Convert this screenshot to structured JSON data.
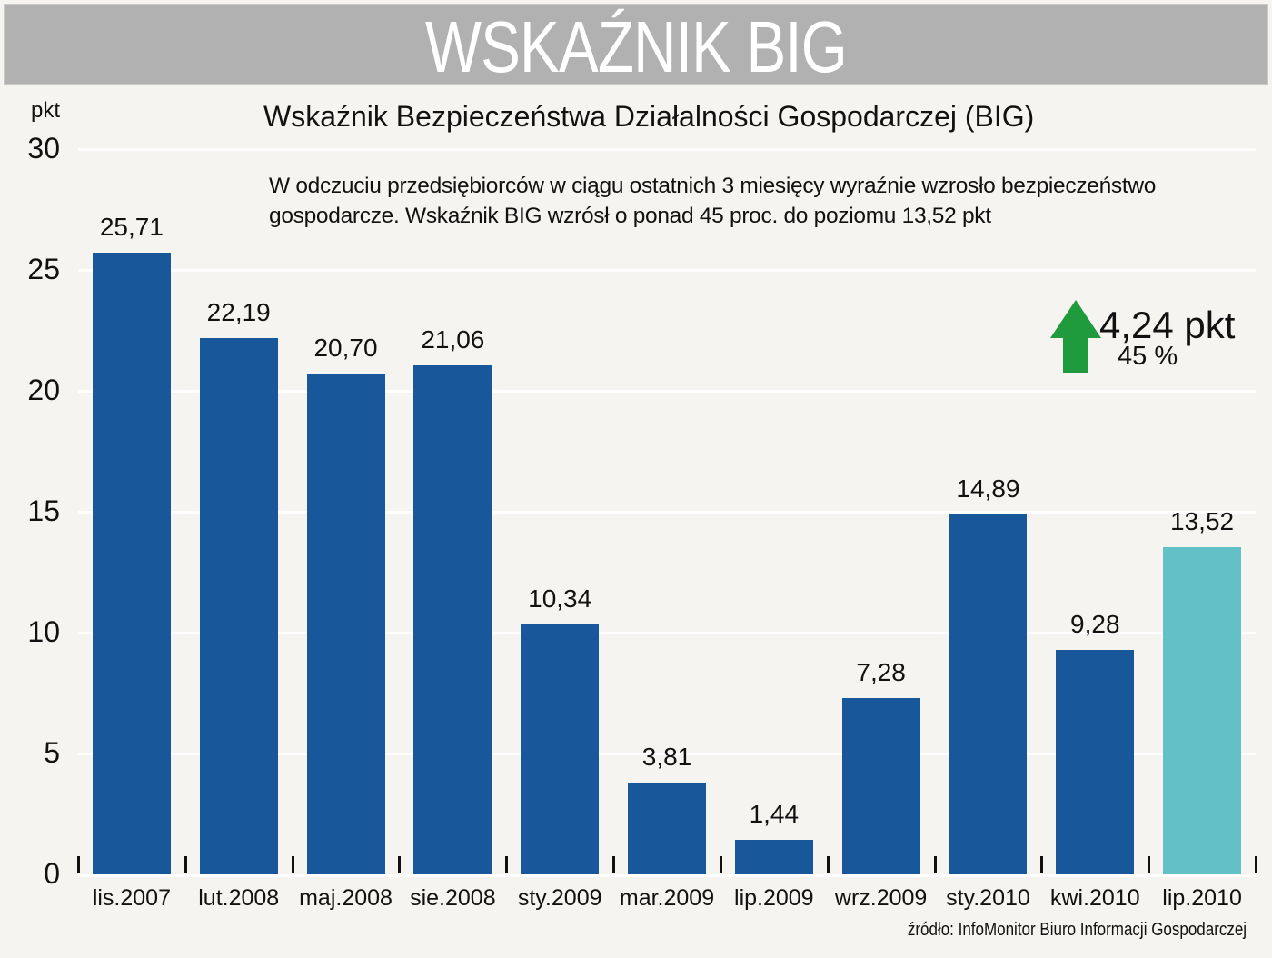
{
  "header": {
    "banner_title": "WSKAŹNIK BIG"
  },
  "chart_data": {
    "type": "bar",
    "title": "Wskaźnik Bezpieczeństwa Działalności Gospodarczej (BIG)",
    "ylabel": "pkt",
    "xlabel": "",
    "ylim": [
      0,
      30
    ],
    "yticks": [
      "0",
      "5",
      "10",
      "15",
      "20",
      "25",
      "30"
    ],
    "grid": true,
    "categories": [
      "lis.2007",
      "lut.2008",
      "maj.2008",
      "sie.2008",
      "sty.2009",
      "mar.2009",
      "lip.2009",
      "wrz.2009",
      "sty.2010",
      "kwi.2010",
      "lip.2010"
    ],
    "values": [
      25.71,
      22.19,
      20.7,
      21.06,
      10.34,
      3.81,
      1.44,
      7.28,
      14.89,
      9.28,
      13.52
    ],
    "value_labels": [
      "25,71",
      "22,19",
      "20,70",
      "21,06",
      "10,34",
      "3,81",
      "1,44",
      "7,28",
      "14,89",
      "9,28",
      "13,52"
    ],
    "colors": {
      "default": "#18579a",
      "highlight": "#61c1c6"
    },
    "highlight_index": 10,
    "annotation": "W odczuciu przedsiębiorców w ciągu ostatnich 3 miesięcy wyraźnie wzrosło bezpieczeństwo gospodarcze. Wskaźnik BIG wzrósł o ponad 45 proc. do poziomu 13,52 pkt",
    "change": {
      "value": "4,24 pkt",
      "percent": "45 %",
      "direction": "up",
      "color": "#1f9a3c"
    },
    "source": "źródło: InfoMonitor Biuro Informacji Gospodarczej"
  }
}
